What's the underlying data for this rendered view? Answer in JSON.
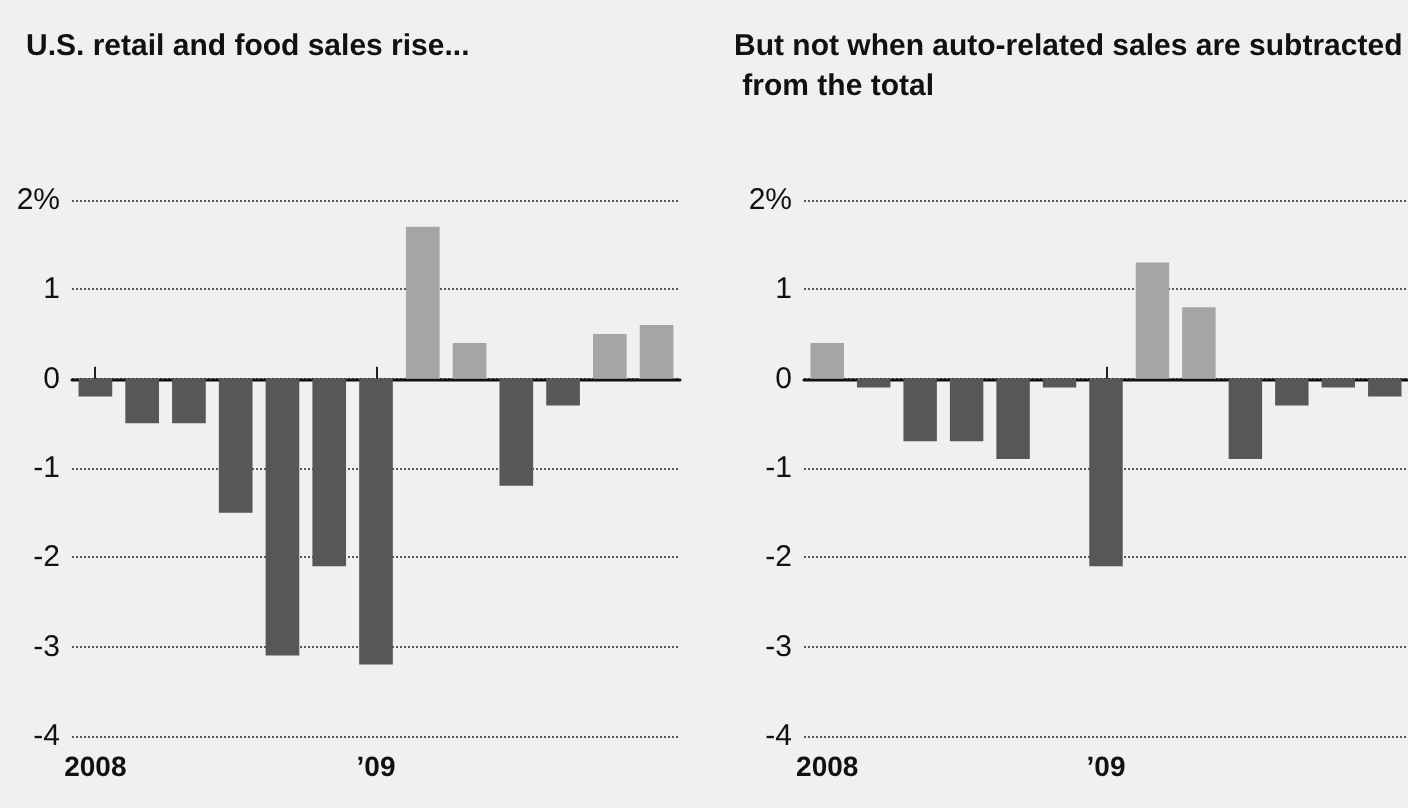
{
  "chart_data": [
    {
      "type": "bar",
      "title": "U.S. retail and food sales rise...",
      "categories": [
        "2008",
        null,
        null,
        null,
        null,
        null,
        "’09",
        null,
        null,
        null,
        null,
        null,
        null
      ],
      "values": [
        -0.2,
        -0.5,
        -0.5,
        -1.5,
        -3.1,
        -2.1,
        -3.2,
        1.7,
        0.4,
        -1.2,
        -0.3,
        0.5,
        0.6
      ],
      "colors": [
        "#575757",
        "#575757",
        "#575757",
        "#575757",
        "#575757",
        "#575757",
        "#575757",
        "#a5a5a5",
        "#a5a5a5",
        "#575757",
        "#575757",
        "#a5a5a5",
        "#a5a5a5"
      ],
      "ylim": [
        -4,
        2
      ],
      "yticks": [
        -4,
        -3,
        -2,
        -1,
        0,
        1,
        {
          "value": 2,
          "label": "2%"
        }
      ],
      "grid": "y"
    },
    {
      "type": "bar",
      "title": "But not when auto-related sales are subtracted from the total",
      "categories": [
        "2008",
        null,
        null,
        null,
        null,
        null,
        "’09",
        null,
        null,
        null,
        null,
        null,
        null
      ],
      "values": [
        0.4,
        -0.1,
        -0.7,
        -0.7,
        -0.9,
        -0.1,
        -2.1,
        1.3,
        0.8,
        -0.9,
        -0.3,
        -0.1,
        -0.2
      ],
      "colors": [
        "#a5a5a5",
        "#575757",
        "#575757",
        "#575757",
        "#575757",
        "#575757",
        "#575757",
        "#a5a5a5",
        "#a5a5a5",
        "#575757",
        "#575757",
        "#575757",
        "#575757"
      ],
      "ylim": [
        -4,
        2
      ],
      "yticks": [
        -4,
        -3,
        -2,
        -1,
        0,
        1,
        {
          "value": 2,
          "label": "2%"
        }
      ],
      "grid": "y"
    }
  ]
}
